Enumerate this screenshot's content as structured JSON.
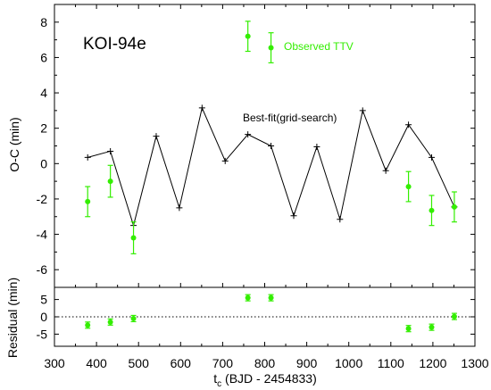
{
  "chart_data": [
    {
      "type": "line",
      "panel": "main",
      "title": "KOI-94e",
      "xlabel": "",
      "ylabel": "O-C (min)",
      "xlim": [
        300,
        1300
      ],
      "ylim": [
        -7,
        9
      ],
      "yticks": [
        -6,
        -4,
        -2,
        0,
        2,
        4,
        6,
        8
      ],
      "grid": false,
      "colors": {
        "model": "#000000",
        "observed": "#33ee00"
      },
      "series": [
        {
          "name": "Best-fit(grid-search)",
          "style": "line-plus-markers",
          "x": [
            379,
            433,
            488,
            542,
            597,
            651,
            706,
            760,
            815,
            869,
            924,
            979,
            1033,
            1088,
            1142,
            1197,
            1251
          ],
          "y": [
            0.35,
            0.7,
            -3.5,
            1.55,
            -2.5,
            3.15,
            0.15,
            1.65,
            1.0,
            -2.95,
            0.95,
            -3.15,
            3.0,
            -0.4,
            2.2,
            0.35,
            -2.45
          ]
        },
        {
          "name": "Observed TTV",
          "style": "points-with-errorbars",
          "x": [
            379,
            433,
            488,
            760,
            815,
            1142,
            1197,
            1251
          ],
          "y": [
            -2.15,
            -1.0,
            -4.2,
            7.2,
            6.55,
            -1.3,
            -2.65,
            -2.45
          ],
          "yerr": [
            0.85,
            0.9,
            0.9,
            0.85,
            0.85,
            0.85,
            0.85,
            0.85
          ]
        }
      ]
    },
    {
      "type": "scatter",
      "panel": "residual",
      "xlabel_main": "t",
      "xlabel_sub": "c",
      "xlabel_rest": " (BJD - 2454833)",
      "ylabel": "Residual (min)",
      "xlim": [
        300,
        1300
      ],
      "ylim": [
        -8.5,
        8.5
      ],
      "xticks": [
        300,
        400,
        500,
        600,
        700,
        800,
        900,
        1000,
        1100,
        1200,
        1300
      ],
      "yticks": [
        -5,
        0,
        5
      ],
      "zero_line": "dotted",
      "series": [
        {
          "name": "",
          "x": [
            379,
            433,
            488,
            760,
            815,
            1142,
            1197,
            1251
          ],
          "y": [
            -2.4,
            -1.5,
            -0.5,
            5.5,
            5.5,
            -3.4,
            -3.0,
            0.1
          ],
          "yerr": [
            0.9,
            0.9,
            0.9,
            0.9,
            0.9,
            0.9,
            0.9,
            0.9
          ]
        }
      ]
    }
  ]
}
